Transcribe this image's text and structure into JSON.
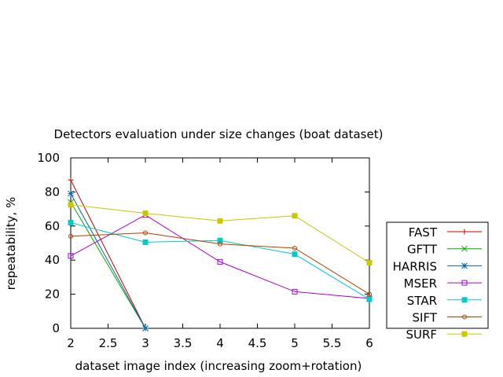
{
  "chart_data": {
    "type": "line",
    "title": "Detectors evaluation under size changes (boat dataset)",
    "xlabel": "dataset image index (increasing zoom+rotation)",
    "ylabel": "repeatability, %",
    "xlim": [
      2,
      6
    ],
    "ylim": [
      0,
      100
    ],
    "xticks": [
      "2",
      "2.5",
      "3",
      "3.5",
      "4",
      "4.5",
      "5",
      "5.5",
      "6"
    ],
    "yticks": [
      "0",
      "20",
      "40",
      "60",
      "80",
      "100"
    ],
    "grid": false,
    "legend_position": "right",
    "x": [
      2,
      3,
      4,
      5,
      6
    ],
    "series": [
      {
        "name": "FAST",
        "color": "#cc0000",
        "marker": "plus",
        "x": [
          2,
          3
        ],
        "values": [
          87,
          0
        ]
      },
      {
        "name": "GFTT",
        "color": "#00aa00",
        "marker": "cross",
        "x": [
          2,
          3
        ],
        "values": [
          74,
          0
        ]
      },
      {
        "name": "HARRIS",
        "color": "#0066aa",
        "marker": "star",
        "x": [
          2,
          3
        ],
        "values": [
          79,
          0
        ]
      },
      {
        "name": "MSER",
        "color": "#aa00cc",
        "marker": "open-square",
        "x": [
          2,
          3,
          4,
          5,
          6
        ],
        "values": [
          42.5,
          66.5,
          39,
          21.5,
          17.5
        ]
      },
      {
        "name": "STAR",
        "color": "#00cccc",
        "marker": "filled-square",
        "x": [
          2,
          3,
          4,
          5,
          6
        ],
        "values": [
          62,
          50.5,
          51.5,
          43.5,
          17
        ]
      },
      {
        "name": "SIFT",
        "color": "#b33f00",
        "marker": "open-circle",
        "x": [
          2,
          3,
          4,
          5,
          6
        ],
        "values": [
          54,
          56,
          49.5,
          47,
          20
        ]
      },
      {
        "name": "SURF",
        "color": "#c8c800",
        "marker": "filled-square",
        "x": [
          2,
          3,
          4,
          5,
          6
        ],
        "values": [
          72.5,
          67.5,
          63,
          66,
          38.5
        ]
      }
    ]
  }
}
